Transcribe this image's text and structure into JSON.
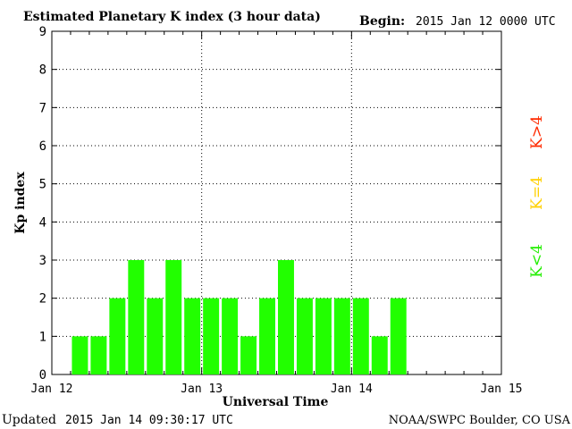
{
  "header": {
    "title": "Estimated Planetary K index (3 hour data)",
    "begin_label": "Begin:",
    "begin_value": "2015 Jan 12 0000 UTC"
  },
  "footer": {
    "updated_label": "Updated",
    "updated_value": "2015 Jan 14 09:30:17 UTC",
    "credit": "NOAA/SWPC Boulder, CO USA"
  },
  "legend": {
    "items": [
      {
        "label": "K>4",
        "color": "#ff2a00"
      },
      {
        "label": "K=4",
        "color": "#ffd000"
      },
      {
        "label": "K<4",
        "color": "#22ee00"
      }
    ]
  },
  "colors": {
    "bar": "#22ff00",
    "axis": "#000000",
    "grid": "#000000"
  },
  "chart_data": {
    "type": "bar",
    "title": "Estimated Planetary K index (3 hour data)",
    "xlabel": "Universal Time",
    "ylabel": "Kp index",
    "xlim": [
      "Jan 12",
      "Jan 15"
    ],
    "ylim": [
      0,
      9
    ],
    "yticks": [
      0,
      1,
      2,
      3,
      4,
      5,
      6,
      7,
      8,
      9
    ],
    "xticks": [
      "Jan 12",
      "Jan 13",
      "Jan 14",
      "Jan 15"
    ],
    "grid": true,
    "bar_interval_hours": 3,
    "values": [
      0,
      1,
      1,
      2,
      3,
      2,
      3,
      2,
      2,
      2,
      1,
      2,
      3,
      2,
      2,
      2,
      2,
      1,
      2
    ]
  }
}
